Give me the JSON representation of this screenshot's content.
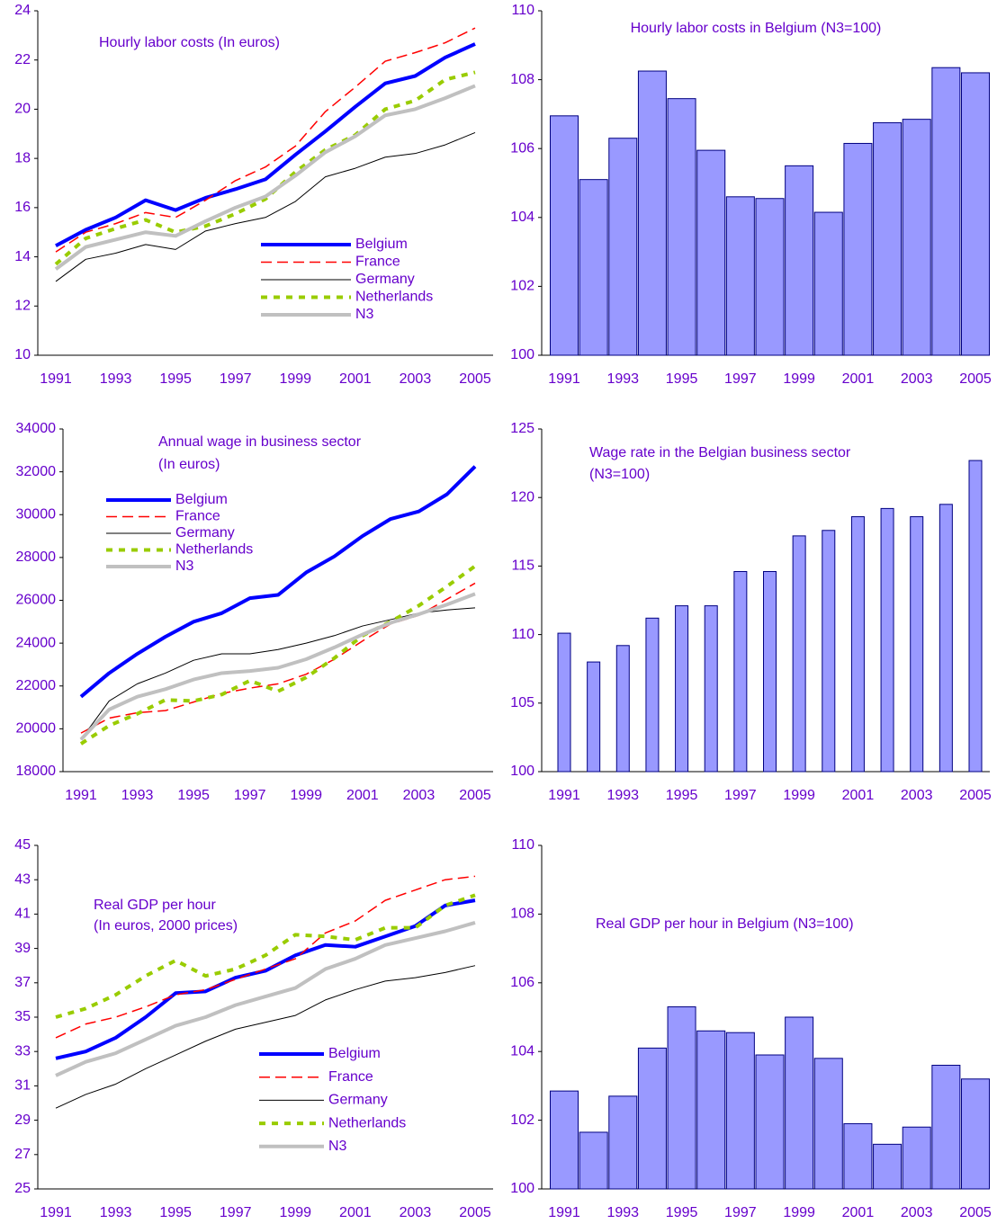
{
  "chart_data": [
    {
      "type": "line",
      "title": "Hourly labor costs (In euros)",
      "x": [
        1991,
        1992,
        1993,
        1994,
        1995,
        1996,
        1997,
        1998,
        1999,
        2000,
        2001,
        2002,
        2003,
        2004,
        2005
      ],
      "xlim": [
        1991,
        2005
      ],
      "xticks": [
        1991,
        1993,
        1995,
        1997,
        1999,
        2001,
        2003,
        2005
      ],
      "ylim": [
        10,
        24
      ],
      "yticks": [
        10,
        12,
        14,
        16,
        18,
        20,
        22,
        24
      ],
      "series": [
        {
          "name": "Belgium",
          "color": "#0000ff",
          "line_style": "solid",
          "line_width": 4,
          "values": [
            14.45,
            15.1,
            15.6,
            16.3,
            15.9,
            16.4,
            16.75,
            17.15,
            18.15,
            19.1,
            20.1,
            21.05,
            21.35,
            22.1,
            22.65
          ]
        },
        {
          "name": "France",
          "color": "#ff0000",
          "line_style": "dashed",
          "line_width": 1.5,
          "values": [
            14.2,
            15.0,
            15.35,
            15.8,
            15.6,
            16.3,
            17.1,
            17.65,
            18.5,
            19.9,
            20.9,
            21.95,
            22.3,
            22.7,
            23.3
          ]
        },
        {
          "name": "Germany",
          "color": "#000000",
          "line_style": "solid",
          "line_width": 1,
          "values": [
            13.0,
            13.9,
            14.15,
            14.5,
            14.3,
            15.05,
            15.35,
            15.6,
            16.25,
            17.25,
            17.6,
            18.05,
            18.2,
            18.55,
            19.05
          ]
        },
        {
          "name": "Netherlands",
          "color": "#99cc00",
          "line_style": "dotted",
          "line_width": 4,
          "values": [
            13.7,
            14.75,
            15.15,
            15.5,
            15.0,
            15.25,
            15.75,
            16.35,
            17.45,
            18.35,
            18.95,
            20.0,
            20.35,
            21.2,
            21.5
          ]
        },
        {
          "name": "N3",
          "color": "#c0c0c0",
          "line_style": "solid",
          "line_width": 4,
          "values": [
            13.5,
            14.4,
            14.7,
            15.0,
            14.85,
            15.45,
            16.0,
            16.45,
            17.3,
            18.25,
            18.9,
            19.75,
            20.0,
            20.45,
            20.95
          ]
        }
      ]
    },
    {
      "type": "bar",
      "title": "Hourly labor costs in Belgium (N3=100)",
      "color": "#9999ff",
      "edge_color": "#000080",
      "x": [
        1991,
        1992,
        1993,
        1994,
        1995,
        1996,
        1997,
        1998,
        1999,
        2000,
        2001,
        2002,
        2003,
        2004,
        2005
      ],
      "xlim": [
        1991,
        2005
      ],
      "xticks": [
        1991,
        1993,
        1995,
        1997,
        1999,
        2001,
        2003,
        2005
      ],
      "ylim": [
        100,
        110
      ],
      "yticks": [
        100,
        102,
        104,
        106,
        108,
        110
      ],
      "values": [
        106.95,
        105.1,
        106.3,
        108.25,
        107.45,
        105.95,
        104.6,
        104.55,
        105.5,
        104.15,
        106.15,
        106.75,
        106.85,
        108.35,
        108.2
      ]
    },
    {
      "type": "line",
      "title": [
        "Annual wage in business sector",
        "(In euros)"
      ],
      "x": [
        1991,
        1992,
        1993,
        1994,
        1995,
        1996,
        1997,
        1998,
        1999,
        2000,
        2001,
        2002,
        2003,
        2004,
        2005
      ],
      "xlim": [
        1991,
        2005
      ],
      "xticks": [
        1991,
        1993,
        1995,
        1997,
        1999,
        2001,
        2003,
        2005
      ],
      "ylim": [
        18000,
        34000
      ],
      "yticks": [
        18000,
        20000,
        22000,
        24000,
        26000,
        28000,
        30000,
        32000,
        34000
      ],
      "series": [
        {
          "name": "Belgium",
          "color": "#0000ff",
          "line_style": "solid",
          "line_width": 4,
          "values": [
            21500,
            22600,
            23500,
            24300,
            25000,
            25400,
            26100,
            26250,
            27300,
            28050,
            29000,
            29800,
            30150,
            30950,
            32250
          ]
        },
        {
          "name": "France",
          "color": "#ff0000",
          "line_style": "dashed",
          "line_width": 1.5,
          "values": [
            19800,
            20500,
            20750,
            20850,
            21250,
            21650,
            21900,
            22100,
            22550,
            23250,
            24100,
            24900,
            25300,
            26050,
            26800
          ]
        },
        {
          "name": "Germany",
          "color": "#000000",
          "line_style": "solid",
          "line_width": 1,
          "values": [
            19500,
            21300,
            22100,
            22600,
            23200,
            23500,
            23500,
            23700,
            24000,
            24350,
            24800,
            25100,
            25400,
            25550,
            25650
          ]
        },
        {
          "name": "Netherlands",
          "color": "#99cc00",
          "line_style": "dotted",
          "line_width": 4,
          "values": [
            19300,
            20150,
            20700,
            21350,
            21300,
            21600,
            22250,
            21750,
            22400,
            23300,
            24350,
            25000,
            25750,
            26650,
            27600
          ]
        },
        {
          "name": "N3",
          "color": "#c0c0c0",
          "line_style": "solid",
          "line_width": 4,
          "values": [
            19500,
            20900,
            21500,
            21850,
            22300,
            22600,
            22700,
            22850,
            23250,
            23800,
            24400,
            24950,
            25350,
            25800,
            26300
          ]
        }
      ]
    },
    {
      "type": "bar",
      "title": [
        "Wage rate in the Belgian business sector",
        "(N3=100)"
      ],
      "color": "#9999ff",
      "edge_color": "#000080",
      "x": [
        1991,
        1992,
        1993,
        1994,
        1995,
        1996,
        1997,
        1998,
        1999,
        2000,
        2001,
        2002,
        2003,
        2004,
        2005
      ],
      "xlim": [
        1991,
        2005
      ],
      "xticks": [
        1991,
        1993,
        1995,
        1997,
        1999,
        2001,
        2003,
        2005
      ],
      "ylim": [
        100,
        125
      ],
      "yticks": [
        100,
        105,
        110,
        115,
        120,
        125
      ],
      "values": [
        110.1,
        108.0,
        109.2,
        111.2,
        112.1,
        112.1,
        114.6,
        114.6,
        117.2,
        117.6,
        118.6,
        119.2,
        118.6,
        119.5,
        122.7
      ]
    },
    {
      "type": "line",
      "title": [
        "Real GDP per hour",
        "(In euros, 2000 prices)"
      ],
      "x": [
        1991,
        1992,
        1993,
        1994,
        1995,
        1996,
        1997,
        1998,
        1999,
        2000,
        2001,
        2002,
        2003,
        2004,
        2005
      ],
      "xlim": [
        1991,
        2005
      ],
      "xticks": [
        1991,
        1993,
        1995,
        1997,
        1999,
        2001,
        2003,
        2005
      ],
      "ylim": [
        25,
        45
      ],
      "yticks": [
        25,
        27,
        29,
        31,
        33,
        35,
        37,
        39,
        41,
        43,
        45
      ],
      "series": [
        {
          "name": "Belgium",
          "color": "#0000ff",
          "line_style": "solid",
          "line_width": 4,
          "values": [
            32.6,
            33.0,
            33.8,
            35.0,
            36.4,
            36.5,
            37.3,
            37.7,
            38.6,
            39.2,
            39.1,
            39.7,
            40.3,
            41.5,
            41.8
          ]
        },
        {
          "name": "France",
          "color": "#ff0000",
          "line_style": "dashed",
          "line_width": 1.5,
          "values": [
            33.8,
            34.6,
            35.0,
            35.6,
            36.3,
            36.6,
            37.2,
            37.8,
            38.4,
            39.9,
            40.6,
            41.8,
            42.4,
            43.0,
            43.2
          ]
        },
        {
          "name": "Germany",
          "color": "#000000",
          "line_style": "solid",
          "line_width": 1,
          "values": [
            29.7,
            30.5,
            31.1,
            32.0,
            32.8,
            33.6,
            34.3,
            34.7,
            35.1,
            36.0,
            36.6,
            37.1,
            37.3,
            37.6,
            38.0
          ]
        },
        {
          "name": "Netherlands",
          "color": "#99cc00",
          "line_style": "dotted",
          "line_width": 4,
          "values": [
            35.0,
            35.5,
            36.3,
            37.4,
            38.3,
            37.4,
            37.8,
            38.6,
            39.8,
            39.7,
            39.5,
            40.2,
            40.2,
            41.5,
            42.1
          ]
        },
        {
          "name": "N3",
          "color": "#c0c0c0",
          "line_style": "solid",
          "line_width": 4,
          "values": [
            31.6,
            32.4,
            32.9,
            33.7,
            34.5,
            35.0,
            35.7,
            36.2,
            36.7,
            37.8,
            38.4,
            39.2,
            39.6,
            40.0,
            40.5
          ]
        }
      ]
    },
    {
      "type": "bar",
      "title": "Real GDP per hour in Belgium (N3=100)",
      "color": "#9999ff",
      "edge_color": "#000080",
      "x": [
        1991,
        1992,
        1993,
        1994,
        1995,
        1996,
        1997,
        1998,
        1999,
        2000,
        2001,
        2002,
        2003,
        2004,
        2005
      ],
      "xlim": [
        1991,
        2005
      ],
      "xticks": [
        1991,
        1993,
        1995,
        1997,
        1999,
        2001,
        2003,
        2005
      ],
      "ylim": [
        100,
        110
      ],
      "yticks": [
        100,
        102,
        104,
        106,
        108,
        110
      ],
      "values": [
        102.85,
        101.65,
        102.7,
        104.1,
        105.3,
        104.6,
        104.55,
        103.9,
        105.0,
        103.8,
        101.9,
        101.3,
        101.8,
        103.6,
        103.2
      ]
    }
  ]
}
